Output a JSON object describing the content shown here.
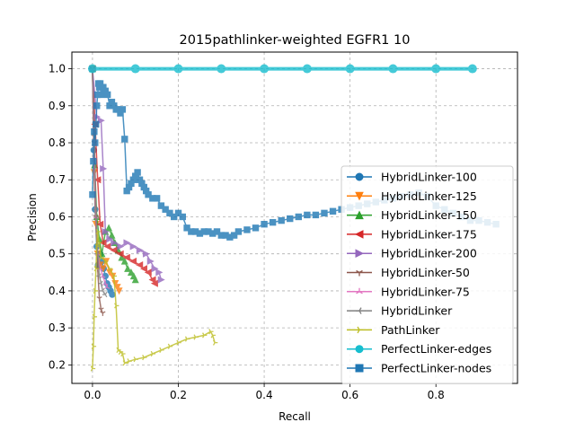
{
  "chart_data": {
    "type": "line",
    "title": "2015pathlinker-weighted EGFR1 10",
    "xlabel": "Recall",
    "ylabel": "Precision",
    "xlim": [
      -0.048,
      0.99
    ],
    "ylim": [
      0.15,
      1.045
    ],
    "x_ticks": [
      "0.0",
      "0.2",
      "0.4",
      "0.6",
      "0.8"
    ],
    "y_ticks": [
      "0.2",
      "0.3",
      "0.4",
      "0.5",
      "0.6",
      "0.7",
      "0.8",
      "0.9",
      "1.0"
    ],
    "grid": true,
    "legend_position": "right",
    "series": [
      {
        "name": "HybridLinker-100",
        "color": "#1f77b4",
        "marker": "circle",
        "x": [
          0.0,
          0.003,
          0.006,
          0.01,
          0.013,
          0.018,
          0.022,
          0.026,
          0.03,
          0.034,
          0.038,
          0.042,
          0.046
        ],
        "y": [
          1.0,
          0.78,
          0.62,
          0.52,
          0.47,
          0.5,
          0.48,
          0.46,
          0.44,
          0.42,
          0.41,
          0.4,
          0.39
        ]
      },
      {
        "name": "HybridLinker-125",
        "color": "#ff7f0e",
        "marker": "triangle-down",
        "x": [
          0.0,
          0.004,
          0.008,
          0.012,
          0.018,
          0.025,
          0.032,
          0.04,
          0.047,
          0.053,
          0.058,
          0.062
        ],
        "y": [
          1.0,
          0.72,
          0.58,
          0.5,
          0.47,
          0.46,
          0.48,
          0.45,
          0.44,
          0.42,
          0.41,
          0.4
        ]
      },
      {
        "name": "HybridLinker-150",
        "color": "#2ca02c",
        "marker": "triangle-up",
        "x": [
          0.0,
          0.005,
          0.01,
          0.016,
          0.022,
          0.03,
          0.038,
          0.045,
          0.052,
          0.06,
          0.068,
          0.075,
          0.082,
          0.09,
          0.096,
          0.1
        ],
        "y": [
          1.0,
          0.74,
          0.6,
          0.54,
          0.5,
          0.56,
          0.57,
          0.55,
          0.53,
          0.51,
          0.49,
          0.48,
          0.46,
          0.45,
          0.44,
          0.43
        ]
      },
      {
        "name": "HybridLinker-175",
        "color": "#d62728",
        "marker": "triangle-left",
        "x": [
          0.0,
          0.006,
          0.012,
          0.018,
          0.025,
          0.035,
          0.05,
          0.065,
          0.08,
          0.095,
          0.11,
          0.12,
          0.13,
          0.14,
          0.145
        ],
        "y": [
          1.0,
          0.85,
          0.7,
          0.58,
          0.53,
          0.52,
          0.51,
          0.5,
          0.49,
          0.48,
          0.47,
          0.46,
          0.45,
          0.43,
          0.42
        ]
      },
      {
        "name": "HybridLinker-200",
        "color": "#9467bd",
        "marker": "triangle-right",
        "x": [
          0.0,
          0.01,
          0.02,
          0.025,
          0.03,
          0.04,
          0.05,
          0.065,
          0.08,
          0.095,
          0.11,
          0.125,
          0.135,
          0.145,
          0.155,
          0.16
        ],
        "y": [
          1.0,
          0.87,
          0.86,
          0.73,
          0.56,
          0.54,
          0.53,
          0.52,
          0.53,
          0.52,
          0.51,
          0.5,
          0.48,
          0.46,
          0.45,
          0.43
        ]
      },
      {
        "name": "HybridLinker-50",
        "color": "#8c564b",
        "marker": "tri-down",
        "x": [
          0.0,
          0.004,
          0.008,
          0.012,
          0.016,
          0.02,
          0.024
        ],
        "y": [
          1.0,
          0.8,
          0.6,
          0.46,
          0.38,
          0.35,
          0.34
        ]
      },
      {
        "name": "HybridLinker-75",
        "color": "#e377c2",
        "marker": "tri-up",
        "x": [
          0.0,
          0.004,
          0.008,
          0.012,
          0.018,
          0.024,
          0.03,
          0.034
        ],
        "y": [
          1.0,
          0.76,
          0.6,
          0.5,
          0.46,
          0.44,
          0.42,
          0.41
        ]
      },
      {
        "name": "HybridLinker",
        "color": "#7f7f7f",
        "marker": "tri-left",
        "x": [
          0.0,
          0.004,
          0.008,
          0.012,
          0.016,
          0.02,
          0.024,
          0.03
        ],
        "y": [
          1.0,
          0.82,
          0.62,
          0.5,
          0.44,
          0.42,
          0.4,
          0.39
        ]
      },
      {
        "name": "PathLinker",
        "color": "#bcbd22",
        "marker": "tri-right",
        "x": [
          0.0,
          0.002,
          0.004,
          0.006,
          0.008,
          0.01,
          0.012,
          0.015,
          0.02,
          0.03,
          0.04,
          0.05,
          0.055,
          0.06,
          0.065,
          0.07,
          0.075,
          0.085,
          0.1,
          0.12,
          0.14,
          0.16,
          0.18,
          0.2,
          0.22,
          0.24,
          0.26,
          0.275,
          0.28,
          0.285
        ],
        "y": [
          0.19,
          0.25,
          0.33,
          0.4,
          0.46,
          0.52,
          0.56,
          0.53,
          0.49,
          0.48,
          0.46,
          0.44,
          0.36,
          0.24,
          0.235,
          0.23,
          0.205,
          0.21,
          0.215,
          0.22,
          0.23,
          0.24,
          0.25,
          0.26,
          0.27,
          0.275,
          0.28,
          0.29,
          0.28,
          0.26
        ]
      },
      {
        "name": "PerfectLinker-edges",
        "color": "#17becf",
        "marker": "circle",
        "x": [
          0.0,
          0.1,
          0.2,
          0.3,
          0.4,
          0.5,
          0.6,
          0.7,
          0.8,
          0.885
        ],
        "y": [
          1.0,
          1.0,
          1.0,
          1.0,
          1.0,
          1.0,
          1.0,
          1.0,
          1.0,
          1.0
        ]
      },
      {
        "name": "PerfectLinker-nodes",
        "color": "#1f77b4",
        "marker": "square",
        "x": [
          0.0,
          0.002,
          0.004,
          0.006,
          0.008,
          0.01,
          0.012,
          0.014,
          0.016,
          0.018,
          0.02,
          0.025,
          0.03,
          0.035,
          0.04,
          0.045,
          0.05,
          0.055,
          0.06,
          0.065,
          0.07,
          0.075,
          0.08,
          0.085,
          0.09,
          0.095,
          0.1,
          0.105,
          0.11,
          0.115,
          0.12,
          0.125,
          0.13,
          0.14,
          0.15,
          0.16,
          0.17,
          0.18,
          0.19,
          0.2,
          0.21,
          0.22,
          0.23,
          0.24,
          0.25,
          0.26,
          0.27,
          0.28,
          0.29,
          0.3,
          0.31,
          0.32,
          0.33,
          0.34,
          0.36,
          0.38,
          0.4,
          0.42,
          0.44,
          0.46,
          0.48,
          0.5,
          0.52,
          0.54,
          0.56,
          0.58,
          0.6,
          0.62,
          0.64,
          0.66,
          0.68,
          0.7,
          0.72,
          0.74,
          0.76,
          0.78,
          0.8,
          0.82,
          0.84,
          0.86,
          0.88,
          0.9,
          0.92,
          0.94
        ],
        "y": [
          0.66,
          0.75,
          0.83,
          0.8,
          0.85,
          0.9,
          0.93,
          0.96,
          0.95,
          0.96,
          0.93,
          0.95,
          0.94,
          0.93,
          0.9,
          0.91,
          0.9,
          0.89,
          0.89,
          0.88,
          0.89,
          0.81,
          0.67,
          0.68,
          0.69,
          0.7,
          0.71,
          0.72,
          0.7,
          0.69,
          0.68,
          0.67,
          0.66,
          0.65,
          0.65,
          0.63,
          0.62,
          0.61,
          0.6,
          0.61,
          0.6,
          0.57,
          0.56,
          0.56,
          0.555,
          0.56,
          0.56,
          0.555,
          0.56,
          0.55,
          0.55,
          0.545,
          0.55,
          0.56,
          0.565,
          0.57,
          0.58,
          0.585,
          0.59,
          0.595,
          0.6,
          0.605,
          0.605,
          0.61,
          0.615,
          0.62,
          0.625,
          0.63,
          0.635,
          0.64,
          0.645,
          0.65,
          0.655,
          0.66,
          0.665,
          0.655,
          0.63,
          0.62,
          0.61,
          0.6,
          0.59,
          0.59,
          0.585,
          0.58
        ]
      }
    ]
  }
}
